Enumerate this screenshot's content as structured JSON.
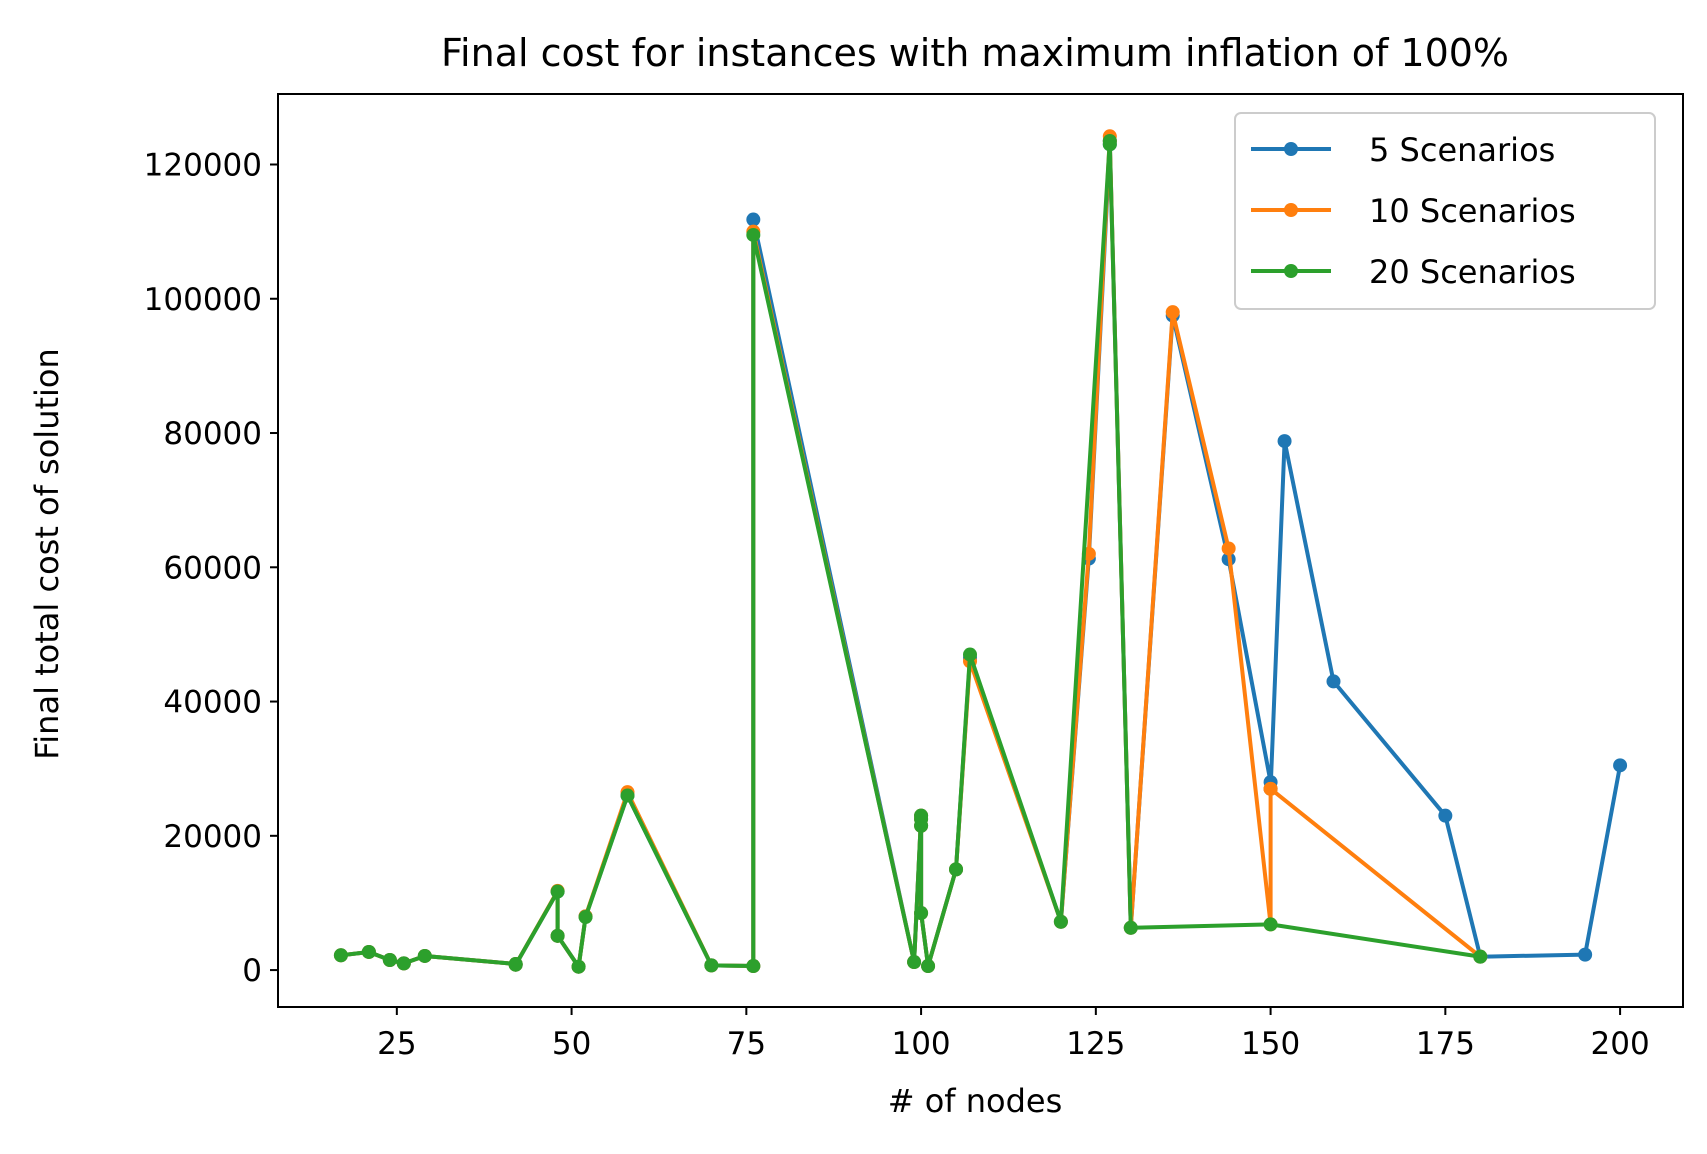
{
  "chart_data": {
    "type": "line",
    "title": "Final cost for instances with maximum inflation of 100%",
    "xlabel": "# of nodes",
    "ylabel": "Final total cost of solution",
    "xlim": [
      8,
      209
    ],
    "ylim": [
      -5500,
      130500
    ],
    "xticks": [
      25,
      50,
      75,
      100,
      125,
      150,
      175,
      200
    ],
    "yticks": [
      0,
      20000,
      40000,
      60000,
      80000,
      100000,
      120000
    ],
    "grid": false,
    "legend_position": "top-right",
    "series": [
      {
        "name": "5 Scenarios",
        "color": "#1f77b4",
        "x": [
          17,
          21,
          24,
          26,
          29,
          42,
          42,
          48,
          48,
          51,
          52,
          58,
          70,
          76,
          76,
          99,
          100,
          100,
          100,
          100,
          101,
          105,
          107,
          120,
          124,
          127,
          127,
          130,
          136,
          144,
          150,
          150,
          152,
          159,
          175,
          180,
          195,
          200
        ],
        "y": [
          2200,
          2700,
          1500,
          1000,
          2100,
          900,
          800,
          11700,
          5100,
          500,
          8000,
          26000,
          700,
          600,
          111800,
          1200,
          23000,
          21500,
          22500,
          8500,
          600,
          15000,
          46500,
          7200,
          61300,
          123000,
          123500,
          6300,
          97500,
          61200,
          28000,
          27000,
          78800,
          43000,
          23000,
          2000,
          2300,
          30500
        ]
      },
      {
        "name": "10 Scenarios",
        "color": "#ff7f0e",
        "x": [
          17,
          21,
          24,
          26,
          29,
          42,
          42,
          48,
          48,
          51,
          52,
          58,
          70,
          76,
          76,
          99,
          100,
          100,
          100,
          100,
          101,
          105,
          107,
          120,
          124,
          127,
          127,
          130,
          136,
          144,
          150,
          150,
          150,
          180
        ],
        "y": [
          2200,
          2700,
          1500,
          1000,
          2100,
          900,
          800,
          11800,
          5100,
          500,
          8000,
          26500,
          700,
          600,
          110000,
          1200,
          23000,
          21500,
          22500,
          8500,
          600,
          15000,
          46000,
          7200,
          62000,
          124200,
          123500,
          6300,
          98000,
          62800,
          6800,
          27000,
          27000,
          2000
        ]
      },
      {
        "name": "20 Scenarios",
        "color": "#2ca02c",
        "x": [
          17,
          21,
          24,
          26,
          29,
          42,
          42,
          48,
          48,
          51,
          52,
          58,
          70,
          76,
          76,
          99,
          100,
          100,
          100,
          100,
          101,
          105,
          107,
          120,
          127,
          127,
          130,
          150,
          180
        ],
        "y": [
          2200,
          2700,
          1500,
          1000,
          2100,
          900,
          800,
          11700,
          5100,
          500,
          7900,
          26000,
          700,
          600,
          109500,
          1200,
          23000,
          21500,
          22500,
          8500,
          600,
          15000,
          47000,
          7200,
          123500,
          123000,
          6300,
          6800,
          2000
        ]
      }
    ]
  }
}
